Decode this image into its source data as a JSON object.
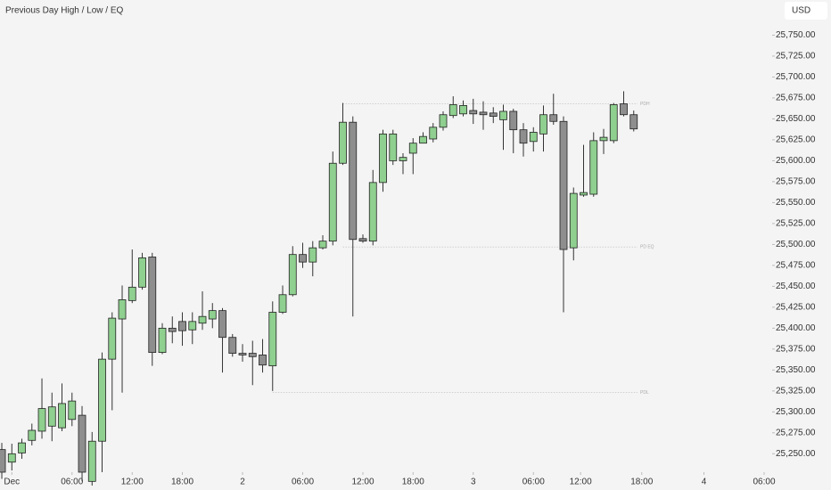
{
  "chart_data": {
    "type": "candlestick",
    "title": "Previous Day High / Low / EQ",
    "currency": "USD",
    "up_color": "#8fcf8f",
    "down_color": "#8e8e8e",
    "open": [
      25255,
      25240,
      25251,
      25266,
      25277,
      25283,
      25281,
      25291,
      25296,
      25217,
      25265,
      25363,
      25411,
      25433,
      25449,
      25485,
      25371,
      25400,
      25408,
      25398,
      25406,
      25411,
      25421,
      25389,
      25370,
      25370,
      25368,
      25355,
      25419,
      25440,
      25488,
      25479,
      25496,
      25504,
      25597,
      25646,
      25507,
      25504,
      25574,
      25600,
      25600,
      25609,
      25621,
      25626,
      25640,
      25654,
      25656,
      25660,
      25658,
      25657,
      25649,
      25659,
      25637,
      25623,
      25632,
      25655,
      25647,
      25496,
      25559,
      25560,
      25624,
      25624,
      25668,
      25655
    ],
    "high": [
      25263,
      25262,
      25268,
      25286,
      25340,
      25323,
      25334,
      25323,
      25307,
      25276,
      25371,
      25419,
      25451,
      25494,
      25490,
      25490,
      25406,
      25414,
      25419,
      25419,
      25444,
      25430,
      25424,
      25393,
      25381,
      25385,
      25387,
      25432,
      25451,
      25498,
      25502,
      25504,
      25511,
      25611,
      25669,
      25653,
      25512,
      25589,
      25637,
      25637,
      25609,
      25627,
      25634,
      25645,
      25659,
      25677,
      25672,
      25674,
      25671,
      25664,
      25667,
      25662,
      25645,
      25640,
      25666,
      25680,
      25653,
      25568,
      25619,
      25634,
      25638,
      25669,
      25683,
      25660
    ],
    "low": [
      25220,
      25230,
      25244,
      25260,
      25268,
      25265,
      25277,
      25283,
      25217,
      25212,
      25228,
      25302,
      25323,
      25430,
      25446,
      25355,
      25369,
      25382,
      25379,
      25381,
      25398,
      25400,
      25347,
      25366,
      25360,
      25332,
      25347,
      25325,
      25417,
      25438,
      25472,
      25462,
      25494,
      25499,
      25595,
      25414,
      25502,
      25499,
      25563,
      25595,
      25584,
      25584,
      25624,
      25622,
      25636,
      25651,
      25653,
      25644,
      25637,
      25645,
      25613,
      25609,
      25605,
      25611,
      25611,
      25643,
      25419,
      25481,
      25557,
      25557,
      25608,
      25621,
      25653,
      25635
    ],
    "close": [
      25228,
      25250,
      25263,
      25278,
      25304,
      25306,
      25310,
      25313,
      25228,
      25265,
      25363,
      25412,
      25434,
      25449,
      25484,
      25371,
      25400,
      25396,
      25397,
      25408,
      25414,
      25421,
      25389,
      25370,
      25368,
      25366,
      25356,
      25419,
      25440,
      25488,
      25479,
      25496,
      25504,
      25597,
      25646,
      25506,
      25504,
      25574,
      25632,
      25632,
      25604,
      25621,
      25629,
      25640,
      25655,
      25667,
      25666,
      25656,
      25655,
      25653,
      25659,
      25637,
      25621,
      25634,
      25655,
      25647,
      25494,
      25561,
      25562,
      25624,
      25628,
      25667,
      25655,
      25638
    ],
    "levels": [
      {
        "name": "PDH",
        "value": 25668,
        "x_start": 34
      },
      {
        "name": "PD EQ",
        "value": 25497,
        "x_start": 34
      },
      {
        "name": "PDL",
        "value": 25323,
        "x_start": 27
      }
    ],
    "xlim": [
      -0.18,
      76.8
    ],
    "xticks": [
      {
        "value": 1,
        "label": "Dec"
      },
      {
        "value": 7,
        "label": "06:00"
      },
      {
        "value": 13,
        "label": "12:00"
      },
      {
        "value": 18,
        "label": "18:00"
      },
      {
        "value": 24,
        "label": "2"
      },
      {
        "value": 30,
        "label": "06:00"
      },
      {
        "value": 36,
        "label": "12:00"
      },
      {
        "value": 41,
        "label": "18:00"
      },
      {
        "value": 47,
        "label": "3"
      },
      {
        "value": 53,
        "label": "06:00"
      },
      {
        "value": 57.7,
        "label": "12:00"
      },
      {
        "value": 63.8,
        "label": "18:00"
      },
      {
        "value": 70,
        "label": "4"
      },
      {
        "value": 76,
        "label": "06:00"
      }
    ],
    "ylim": [
      25228,
      25792
    ],
    "yticks": [
      {
        "value": 25250,
        "label": "25,250.00"
      },
      {
        "value": 25275,
        "label": "25,275.00"
      },
      {
        "value": 25300,
        "label": "25,300.00"
      },
      {
        "value": 25325,
        "label": "25,325.00"
      },
      {
        "value": 25350,
        "label": "25,350.00"
      },
      {
        "value": 25375,
        "label": "25,375.00"
      },
      {
        "value": 25400,
        "label": "25,400.00"
      },
      {
        "value": 25425,
        "label": "25,425.00"
      },
      {
        "value": 25450,
        "label": "25,450.00"
      },
      {
        "value": 25475,
        "label": "25,475.00"
      },
      {
        "value": 25500,
        "label": "25,500.00"
      },
      {
        "value": 25525,
        "label": "25,525.00"
      },
      {
        "value": 25550,
        "label": "25,550.00"
      },
      {
        "value": 25575,
        "label": "25,575.00"
      },
      {
        "value": 25600,
        "label": "25,600.00"
      },
      {
        "value": 25625,
        "label": "25,625.00"
      },
      {
        "value": 25650,
        "label": "25,650.00"
      },
      {
        "value": 25675,
        "label": "25,675.00"
      },
      {
        "value": 25700,
        "label": "25,700.00"
      },
      {
        "value": 25725,
        "label": "25,725.00"
      },
      {
        "value": 25750,
        "label": "25,750.00"
      }
    ]
  }
}
